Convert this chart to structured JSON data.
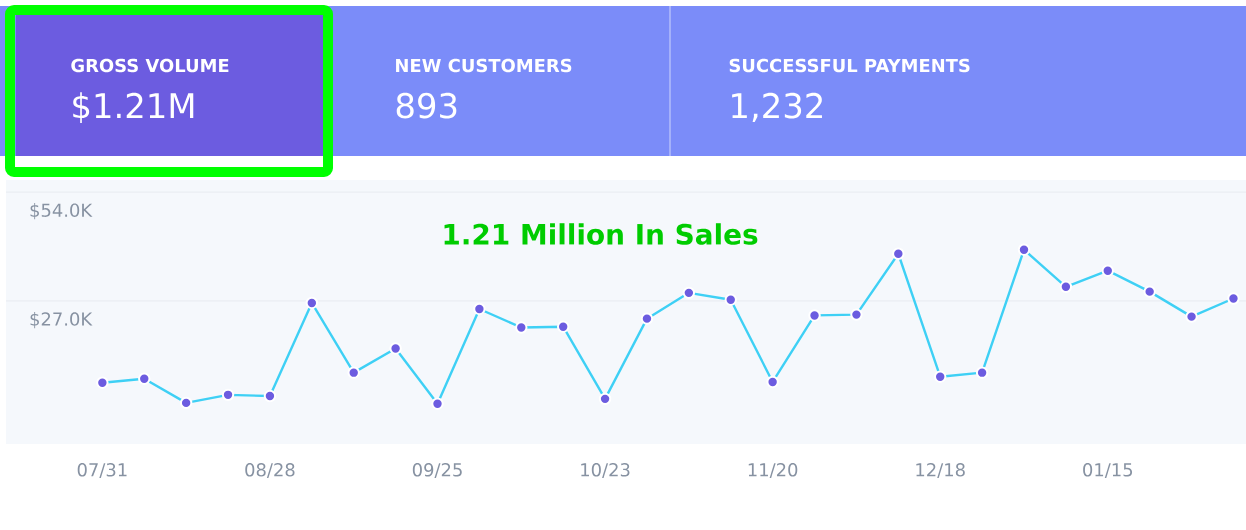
{
  "chart_data": {
    "type": "line",
    "annotations": [
      "GROSS VOLUME",
      "$1.21M",
      "NEW CUSTOMERS",
      "893",
      "SUCCESSFUL PAYMENTS",
      "1,232",
      "1.21 Million In Sales"
    ],
    "categories": [
      "07/31",
      null,
      null,
      null,
      "08/28",
      null,
      null,
      null,
      "09/25",
      null,
      null,
      null,
      "10/23",
      null,
      null,
      null,
      "11/20",
      null,
      null,
      null,
      "12/18",
      null,
      null,
      null,
      "01/15",
      null,
      null,
      null
    ],
    "series": [
      {
        "color": "#3ed0f5",
        "values": [
          6.7,
          7.7,
          1.7,
          3.7,
          3.4,
          26.5,
          9.2,
          15.2,
          1.5,
          25.0,
          20.4,
          20.6,
          2.7,
          22.6,
          29.0,
          27.3,
          6.9,
          23.4,
          23.6,
          38.7,
          8.2,
          9.2,
          39.7,
          30.5,
          34.5,
          29.3,
          23.1,
          27.6
        ]
      }
    ],
    "ylim": [
      -8.5,
      57
    ],
    "yticks": [
      {
        "value": 27,
        "label": "$27.0K"
      },
      {
        "value": 54,
        "label": "$54.0K"
      }
    ],
    "grid": "y",
    "marker": "circle",
    "line_style": "solid"
  }
}
